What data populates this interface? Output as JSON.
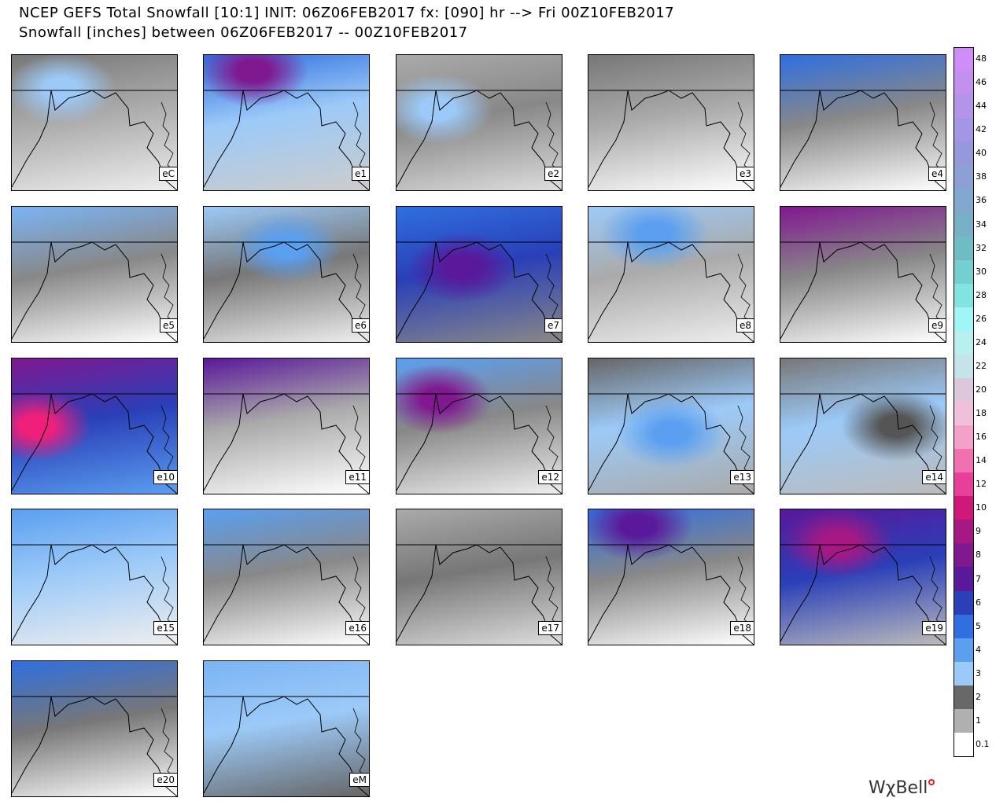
{
  "header": {
    "title": "NCEP GEFS Total Snowfall [10:1] INIT: 06Z06FEB2017 fx: [090] hr --> Fri 00Z10FEB2017",
    "subtitle": "Snowfall [inches] between 06Z06FEB2017 -- 00Z10FEB2017"
  },
  "panels": [
    {
      "label": "eC"
    },
    {
      "label": "e1"
    },
    {
      "label": "e2"
    },
    {
      "label": "e3"
    },
    {
      "label": "e4"
    },
    {
      "label": "e5"
    },
    {
      "label": "e6"
    },
    {
      "label": "e7"
    },
    {
      "label": "e8"
    },
    {
      "label": "e9"
    },
    {
      "label": "e10"
    },
    {
      "label": "e11"
    },
    {
      "label": "e12"
    },
    {
      "label": "e13"
    },
    {
      "label": "e14"
    },
    {
      "label": "e15"
    },
    {
      "label": "e16"
    },
    {
      "label": "e17"
    },
    {
      "label": "e18"
    },
    {
      "label": "e19"
    },
    {
      "label": "e20"
    },
    {
      "label": "eM"
    }
  ],
  "colorbar": {
    "levels": [
      {
        "label": "48",
        "color": "#d08cf8"
      },
      {
        "label": "46",
        "color": "#c490f0"
      },
      {
        "label": "44",
        "color": "#b494ea"
      },
      {
        "label": "42",
        "color": "#a496e4"
      },
      {
        "label": "40",
        "color": "#9698dc"
      },
      {
        "label": "38",
        "color": "#8ca0d6"
      },
      {
        "label": "36",
        "color": "#82a8d0"
      },
      {
        "label": "34",
        "color": "#78b0c8"
      },
      {
        "label": "32",
        "color": "#70bcc4"
      },
      {
        "label": "30",
        "color": "#74d0d0"
      },
      {
        "label": "28",
        "color": "#80e4e0"
      },
      {
        "label": "26",
        "color": "#a0f6f6"
      },
      {
        "label": "24",
        "color": "#b8f0f0"
      },
      {
        "label": "22",
        "color": "#c4e4ea"
      },
      {
        "label": "20",
        "color": "#dcc8dc"
      },
      {
        "label": "18",
        "color": "#f0c0d8"
      },
      {
        "label": "16",
        "color": "#f4a0c8"
      },
      {
        "label": "14",
        "color": "#f070b0"
      },
      {
        "label": "12",
        "color": "#e8409a"
      },
      {
        "label": "10",
        "color": "#d0187a"
      },
      {
        "label": "9",
        "color": "#a81884"
      },
      {
        "label": "8",
        "color": "#801890"
      },
      {
        "label": "7",
        "color": "#5a189a"
      },
      {
        "label": "6",
        "color": "#2a3fb8"
      },
      {
        "label": "5",
        "color": "#2f6fe0"
      },
      {
        "label": "4",
        "color": "#5a9ff0"
      },
      {
        "label": "3",
        "color": "#9ccaf8"
      },
      {
        "label": "2",
        "color": "#686868"
      },
      {
        "label": "1",
        "color": "#b0b0b0"
      },
      {
        "label": "0.1",
        "color": "#ffffff"
      }
    ]
  },
  "logo": "WχBell"
}
